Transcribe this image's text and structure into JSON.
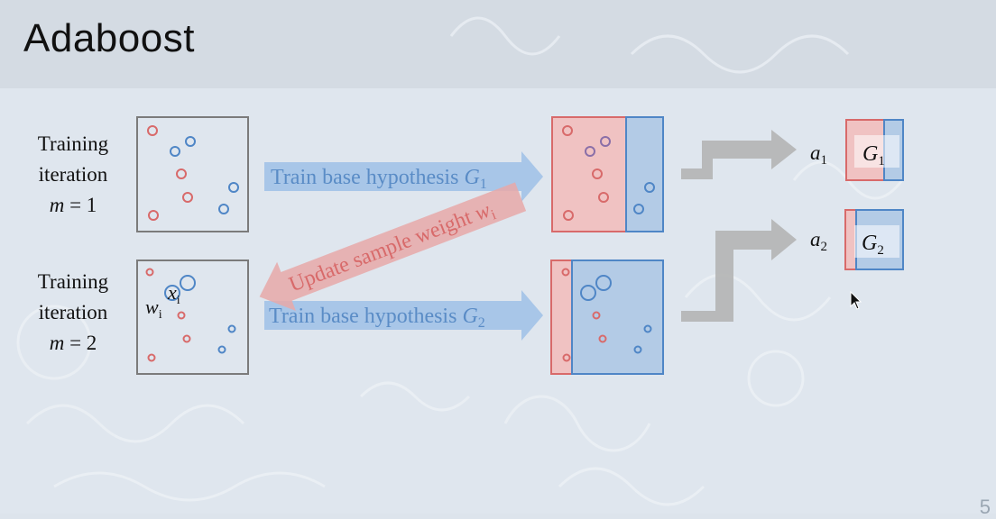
{
  "slide": {
    "title": "Adaboost",
    "page_number": "5"
  },
  "iterations": [
    {
      "line1": "Training",
      "line2": "iteration",
      "m_symbol": "m",
      "m_equals": " = 1",
      "arrow_text": "Train base hypothesis",
      "arrow_hypothesis": "G",
      "arrow_hypothesis_sub": "1"
    },
    {
      "line1": "Training",
      "line2": "iteration",
      "m_symbol": "m",
      "m_equals": " = 2",
      "arrow_text": "Train base hypothesis",
      "arrow_hypothesis": "G",
      "arrow_hypothesis_sub": "2"
    }
  ],
  "update_arrow": {
    "text": "Update sample weight",
    "symbol": "w",
    "symbol_sub": "i"
  },
  "sample_labels": {
    "x_symbol": "x",
    "x_sub": "i",
    "w_symbol": "w",
    "w_sub": "i"
  },
  "ensemble": [
    {
      "alpha": "a",
      "alpha_sub": "1",
      "hypothesis": "G",
      "hypothesis_sub": "1"
    },
    {
      "alpha": "a",
      "alpha_sub": "2",
      "hypothesis": "G",
      "hypothesis_sub": "2"
    }
  ],
  "colors": {
    "red": "#d86a6a",
    "blue": "#4f86c6",
    "red_fill": "#f0c2c2",
    "blue_fill": "#b3cbe6",
    "arrow_blue": "#9fc0e6",
    "arrow_red": "#e8a8a8",
    "arrow_gray": "#b4b4b4"
  }
}
